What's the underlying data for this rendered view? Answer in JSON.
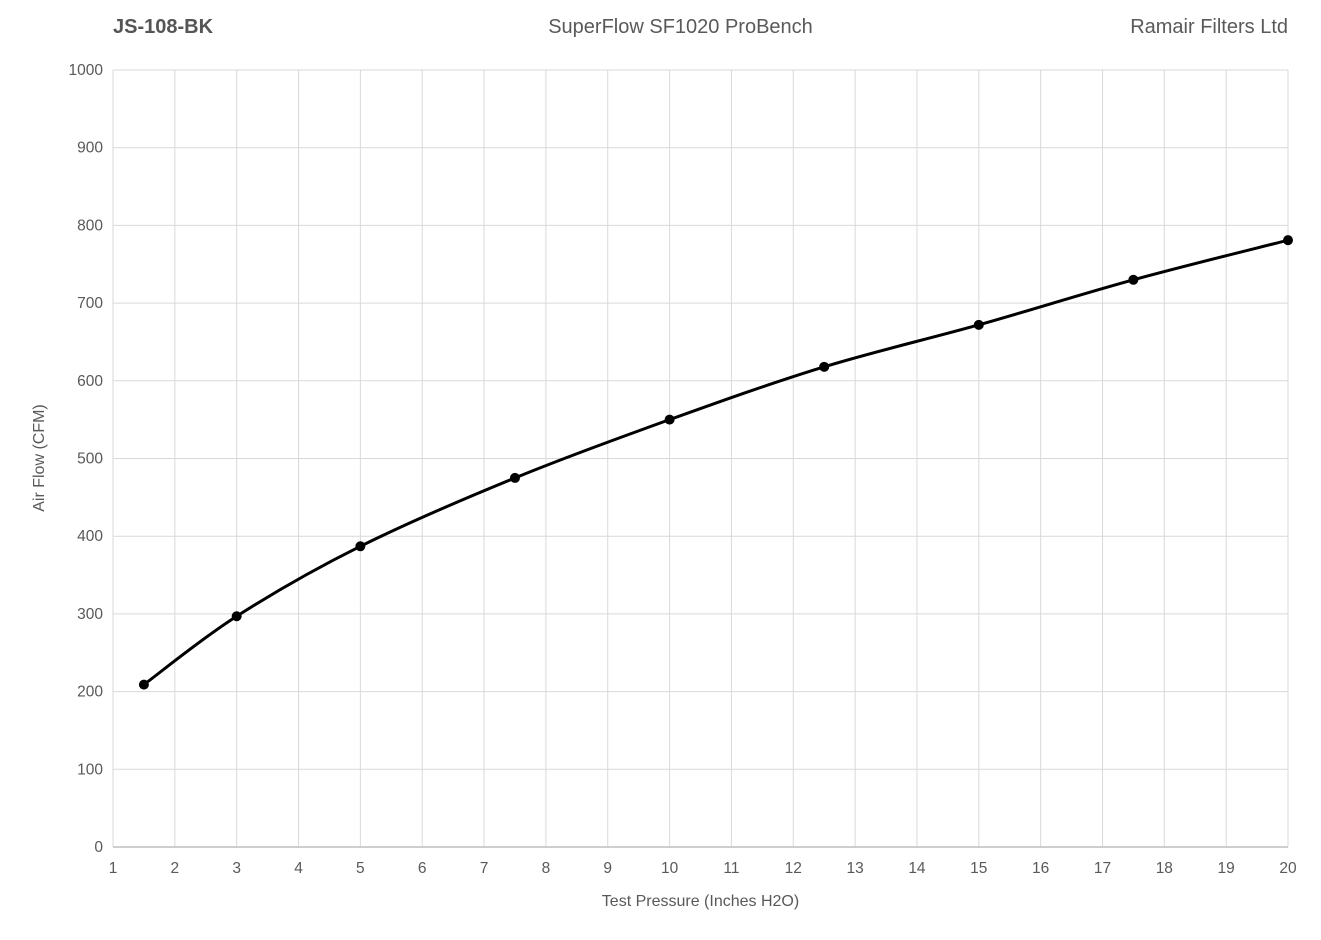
{
  "header": {
    "left": "JS-108-BK",
    "center": "SuperFlow SF1020 ProBench",
    "right": "Ramair Filters Ltd"
  },
  "colors": {
    "grid": "#d9d9d9",
    "axis": "#bfbfbf",
    "tick_text": "#595959",
    "line": "#000000",
    "background": "#ffffff"
  },
  "chart_data": {
    "type": "line",
    "title": "SuperFlow SF1020 ProBench",
    "subtitle_left": "JS-108-BK",
    "subtitle_right": "Ramair Filters Ltd",
    "xlabel": "Test Pressure (Inches H2O)",
    "ylabel": "Air Flow (CFM)",
    "xlim": [
      1,
      20
    ],
    "ylim": [
      0,
      1000
    ],
    "x_ticks": [
      1,
      2,
      3,
      4,
      5,
      6,
      7,
      8,
      9,
      10,
      11,
      12,
      13,
      14,
      15,
      16,
      17,
      18,
      19,
      20
    ],
    "y_ticks": [
      0,
      100,
      200,
      300,
      400,
      500,
      600,
      700,
      800,
      900,
      1000
    ],
    "grid": true,
    "legend_position": "none",
    "series": [
      {
        "name": "JS-108-BK",
        "x": [
          1.5,
          3,
          5,
          7.5,
          10,
          12.5,
          15,
          17.5,
          20
        ],
        "values": [
          209,
          297,
          387,
          475,
          550,
          618,
          672,
          730,
          781
        ],
        "color": "#000000",
        "marker": "circle",
        "smooth": true
      }
    ]
  }
}
